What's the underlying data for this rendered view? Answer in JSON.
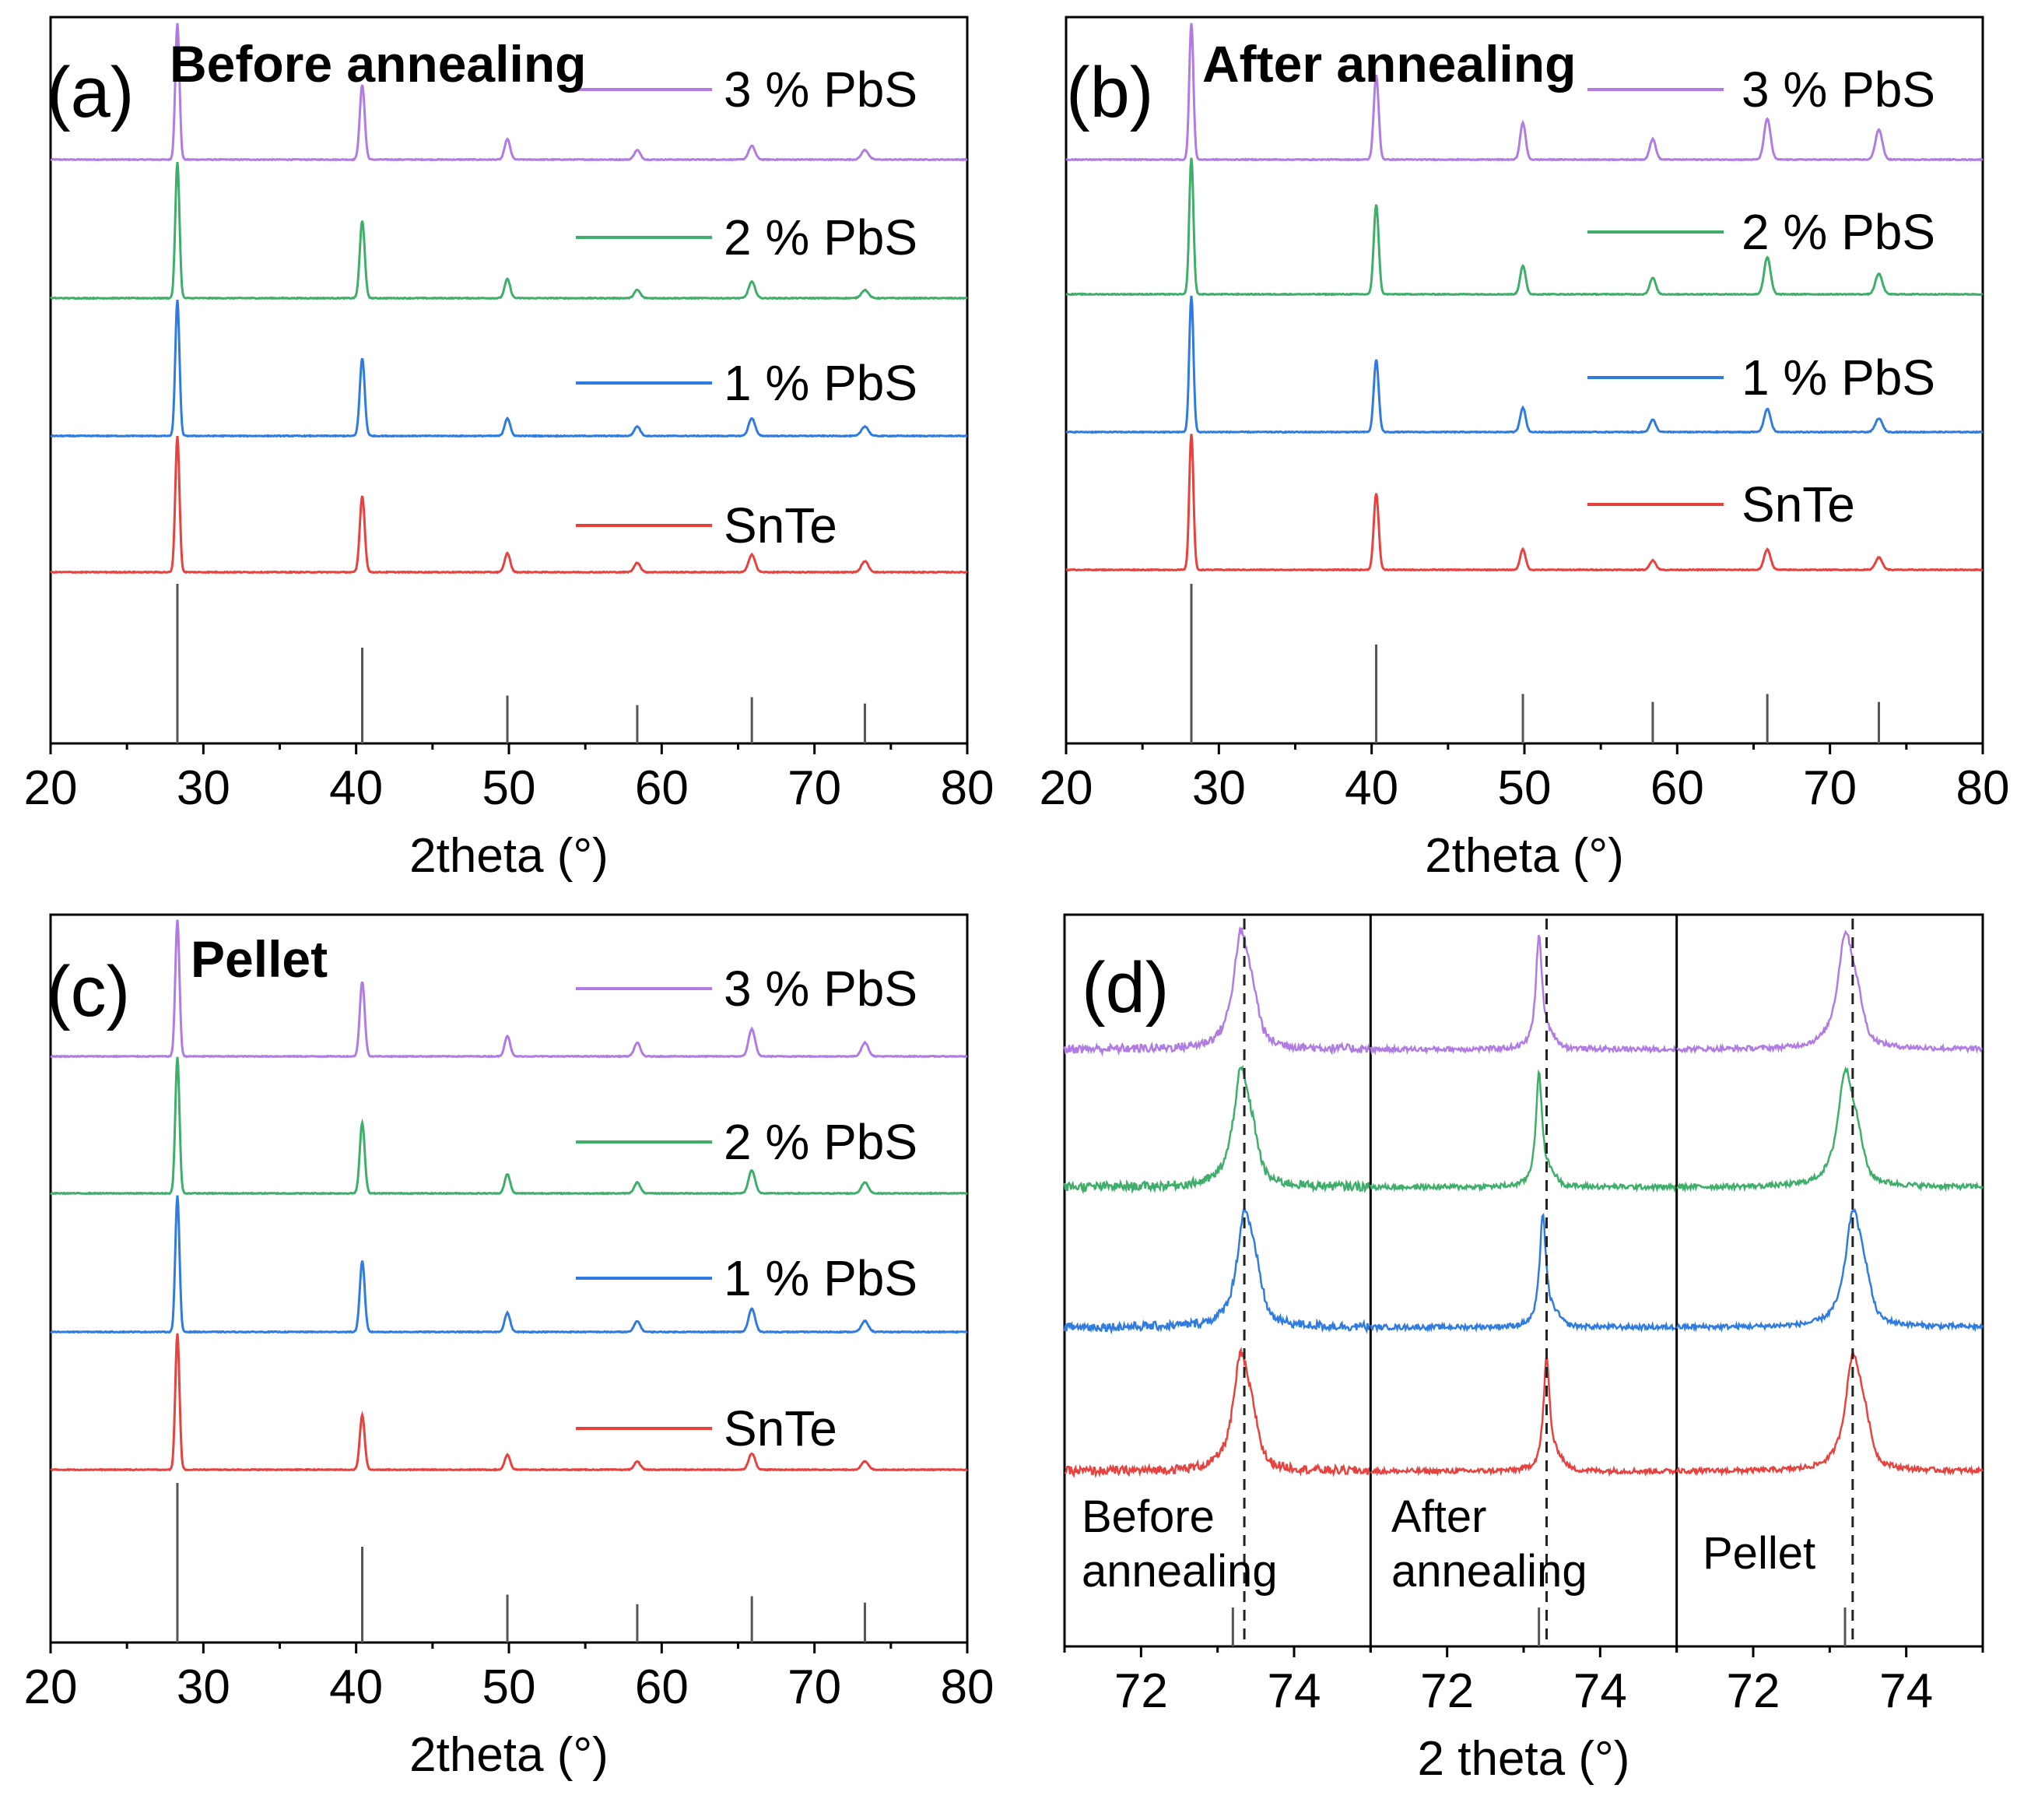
{
  "colors": {
    "SnTe": "#e8423f",
    "1 % PbS": "#2f7be0",
    "2 % PbS": "#3fae6a",
    "3 % PbS": "#b07be3",
    "reference": "#555555"
  },
  "chart_data": [
    {
      "id": "a",
      "type": "line",
      "panel_label": "(a)",
      "title": "Before annealing",
      "xlabel": "2theta (°)",
      "ylabel": "",
      "xlim": [
        20,
        80
      ],
      "xticks": [
        "20",
        "30",
        "40",
        "50",
        "60",
        "70",
        "80"
      ],
      "series": [
        {
          "name": "3 % PbS",
          "peaks": [
            [
              28.3,
              1.0
            ],
            [
              40.4,
              0.55
            ],
            [
              49.9,
              0.15
            ],
            [
              58.4,
              0.07
            ],
            [
              65.9,
              0.1
            ],
            [
              73.3,
              0.07
            ]
          ]
        },
        {
          "name": "2 % PbS",
          "peaks": [
            [
              28.3,
              1.0
            ],
            [
              40.4,
              0.57
            ],
            [
              49.9,
              0.14
            ],
            [
              58.4,
              0.06
            ],
            [
              65.9,
              0.12
            ],
            [
              73.3,
              0.06
            ]
          ]
        },
        {
          "name": "1 % PbS",
          "peaks": [
            [
              28.3,
              1.0
            ],
            [
              40.4,
              0.57
            ],
            [
              49.9,
              0.13
            ],
            [
              58.4,
              0.07
            ],
            [
              65.9,
              0.13
            ],
            [
              73.3,
              0.07
            ]
          ]
        },
        {
          "name": "SnTe",
          "peaks": [
            [
              28.3,
              1.0
            ],
            [
              40.4,
              0.56
            ],
            [
              49.9,
              0.14
            ],
            [
              58.4,
              0.07
            ],
            [
              65.9,
              0.13
            ],
            [
              73.3,
              0.08
            ]
          ]
        }
      ],
      "reference_peaks": [
        [
          28.3,
          1.0
        ],
        [
          40.4,
          0.6
        ],
        [
          49.9,
          0.3
        ],
        [
          58.4,
          0.24
        ],
        [
          65.9,
          0.29
        ],
        [
          73.3,
          0.25
        ]
      ]
    },
    {
      "id": "b",
      "type": "line",
      "panel_label": "(b)",
      "title": "After annealing",
      "xlabel": "2theta (°)",
      "ylabel": "",
      "xlim": [
        20,
        80
      ],
      "xticks": [
        "20",
        "30",
        "40",
        "50",
        "60",
        "70",
        "80"
      ],
      "series": [
        {
          "name": "3 % PbS",
          "peaks": [
            [
              28.2,
              1.0
            ],
            [
              40.3,
              0.62
            ],
            [
              49.9,
              0.27
            ],
            [
              58.4,
              0.15
            ],
            [
              65.9,
              0.3
            ],
            [
              73.2,
              0.22
            ]
          ]
        },
        {
          "name": "2 % PbS",
          "peaks": [
            [
              28.2,
              1.0
            ],
            [
              40.3,
              0.66
            ],
            [
              49.9,
              0.21
            ],
            [
              58.4,
              0.12
            ],
            [
              65.9,
              0.27
            ],
            [
              73.2,
              0.15
            ]
          ]
        },
        {
          "name": "1 % PbS",
          "peaks": [
            [
              28.2,
              1.0
            ],
            [
              40.3,
              0.53
            ],
            [
              49.9,
              0.18
            ],
            [
              58.4,
              0.09
            ],
            [
              65.9,
              0.17
            ],
            [
              73.2,
              0.1
            ]
          ]
        },
        {
          "name": "SnTe",
          "peaks": [
            [
              28.2,
              1.0
            ],
            [
              40.3,
              0.56
            ],
            [
              49.9,
              0.15
            ],
            [
              58.4,
              0.07
            ],
            [
              65.9,
              0.15
            ],
            [
              73.2,
              0.09
            ]
          ]
        }
      ],
      "reference_peaks": [
        [
          28.2,
          1.0
        ],
        [
          40.3,
          0.62
        ],
        [
          49.9,
          0.31
        ],
        [
          58.4,
          0.26
        ],
        [
          65.9,
          0.31
        ],
        [
          73.2,
          0.26
        ]
      ]
    },
    {
      "id": "c",
      "type": "line",
      "panel_label": "(c)",
      "title": "Pellet",
      "xlabel": "2theta (°)",
      "ylabel": "",
      "xlim": [
        20,
        80
      ],
      "xticks": [
        "20",
        "30",
        "40",
        "50",
        "60",
        "70",
        "80"
      ],
      "series": [
        {
          "name": "3 % PbS",
          "peaks": [
            [
              28.3,
              1.0
            ],
            [
              40.4,
              0.55
            ],
            [
              49.9,
              0.15
            ],
            [
              58.4,
              0.1
            ],
            [
              65.9,
              0.2
            ],
            [
              73.3,
              0.1
            ]
          ]
        },
        {
          "name": "2 % PbS",
          "peaks": [
            [
              28.3,
              1.0
            ],
            [
              40.4,
              0.52
            ],
            [
              49.9,
              0.14
            ],
            [
              58.4,
              0.08
            ],
            [
              65.9,
              0.17
            ],
            [
              73.3,
              0.08
            ]
          ]
        },
        {
          "name": "1 % PbS",
          "peaks": [
            [
              28.3,
              1.0
            ],
            [
              40.4,
              0.52
            ],
            [
              49.9,
              0.14
            ],
            [
              58.4,
              0.08
            ],
            [
              65.9,
              0.17
            ],
            [
              73.3,
              0.08
            ]
          ]
        },
        {
          "name": "SnTe",
          "peaks": [
            [
              28.3,
              1.0
            ],
            [
              40.4,
              0.4
            ],
            [
              49.9,
              0.11
            ],
            [
              58.4,
              0.06
            ],
            [
              65.9,
              0.12
            ],
            [
              73.3,
              0.06
            ]
          ]
        }
      ],
      "reference_peaks": [
        [
          28.3,
          1.0
        ],
        [
          40.4,
          0.6
        ],
        [
          49.9,
          0.3
        ],
        [
          58.4,
          0.24
        ],
        [
          65.9,
          0.29
        ],
        [
          73.3,
          0.25
        ]
      ]
    },
    {
      "id": "d",
      "type": "line",
      "panel_label": "(d)",
      "title": "",
      "xlabel": "2 theta (°)",
      "ylabel": "",
      "xlim": [
        71,
        75
      ],
      "xticks": [
        "72",
        "74"
      ],
      "subpanels": [
        {
          "label_lines": [
            "Before",
            "annealing"
          ],
          "dashed_x": 73.35,
          "ref_x": 73.2,
          "peaks": {
            "3 % PbS": 73.3,
            "2 % PbS": 73.3,
            "1 % PbS": 73.35,
            "SnTe": 73.3
          }
        },
        {
          "label_lines": [
            "After",
            "annealing"
          ],
          "dashed_x": 73.3,
          "ref_x": 73.2,
          "peaks": {
            "3 % PbS": 73.2,
            "2 % PbS": 73.2,
            "1 % PbS": 73.25,
            "SnTe": 73.3
          }
        },
        {
          "label_lines": [
            "Pellet"
          ],
          "dashed_x": 73.3,
          "ref_x": 73.2,
          "peaks": {
            "3 % PbS": 73.2,
            "2 % PbS": 73.2,
            "1 % PbS": 73.3,
            "SnTe": 73.3
          }
        }
      ]
    }
  ]
}
